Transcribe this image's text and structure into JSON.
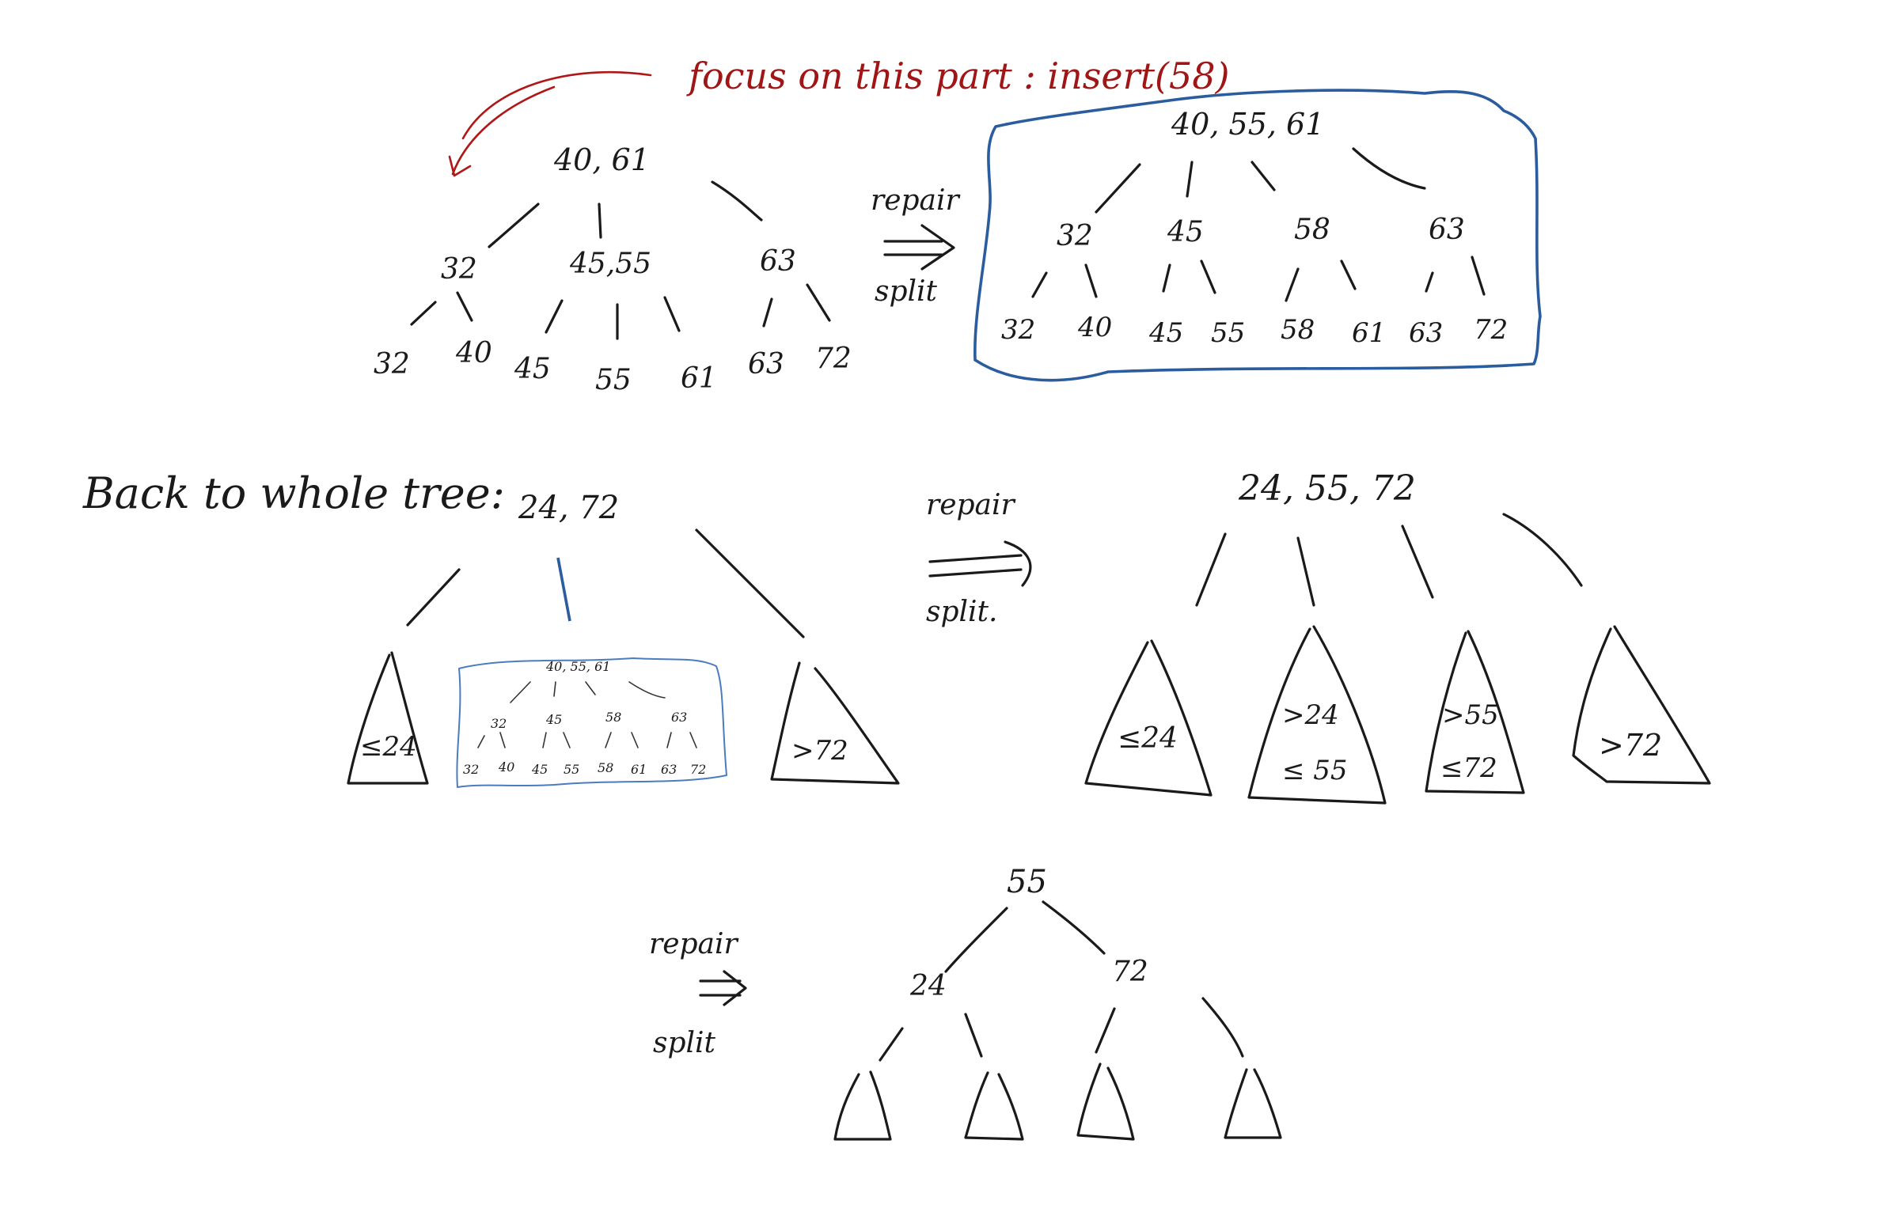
{
  "note": "focus on this part : insert(58)",
  "top_left_tree": {
    "root": "40, 61",
    "children": [
      "32",
      "45,55",
      "63"
    ],
    "leaves": [
      "32",
      "40",
      "45",
      "55",
      "61",
      "63",
      "72"
    ]
  },
  "arrow1": {
    "top": "repair",
    "bottom": "split"
  },
  "top_right_tree": {
    "root": "40, 55, 61",
    "children": [
      "32",
      "45",
      "58",
      "63"
    ],
    "leaves": [
      "32",
      "40",
      "45",
      "55",
      "58",
      "61",
      "63",
      "72"
    ]
  },
  "section_heading": "Back to whole tree:",
  "mid_left_tree": {
    "root": "24, 72",
    "left_subtree": "≤24",
    "right_subtree": ">72",
    "inset": {
      "root": "40, 55, 61",
      "children": [
        "32",
        "45",
        "58",
        "63"
      ],
      "leaves": [
        "32",
        "40",
        "45",
        "55",
        "58",
        "61",
        "63",
        "72"
      ]
    }
  },
  "arrow2": {
    "top": "repair",
    "bottom": "split."
  },
  "mid_right_tree": {
    "root": "24, 55, 72",
    "subtrees": [
      [
        "≤24"
      ],
      [
        ">24",
        "≤ 55"
      ],
      [
        ">55",
        "≤72"
      ],
      [
        ">72"
      ]
    ]
  },
  "arrow3": {
    "top": "repair",
    "bottom": "split"
  },
  "bottom_tree": {
    "root": "55",
    "children": [
      "24",
      "72"
    ]
  }
}
